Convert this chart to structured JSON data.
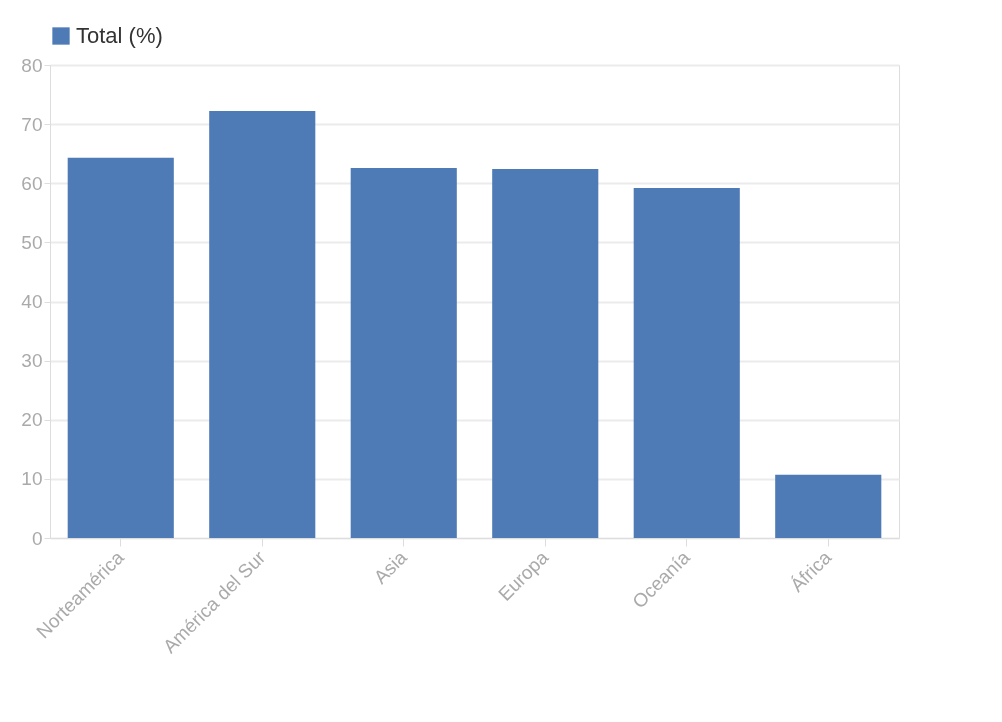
{
  "chart_data": {
    "type": "bar",
    "categories": [
      "Norteamérica",
      "América del Sur",
      "Asia",
      "Europa",
      "Oceanía",
      "África"
    ],
    "series": [
      {
        "name": "Total (%)",
        "color": "#4a78b5",
        "values": [
          64.3,
          72.2,
          62.6,
          62.4,
          59.2,
          10.7
        ]
      }
    ],
    "ylim": [
      0,
      80
    ],
    "yticks": [
      0,
      10,
      20,
      30,
      40,
      50,
      60,
      70,
      80
    ],
    "grid": "y",
    "legend": "top left"
  }
}
